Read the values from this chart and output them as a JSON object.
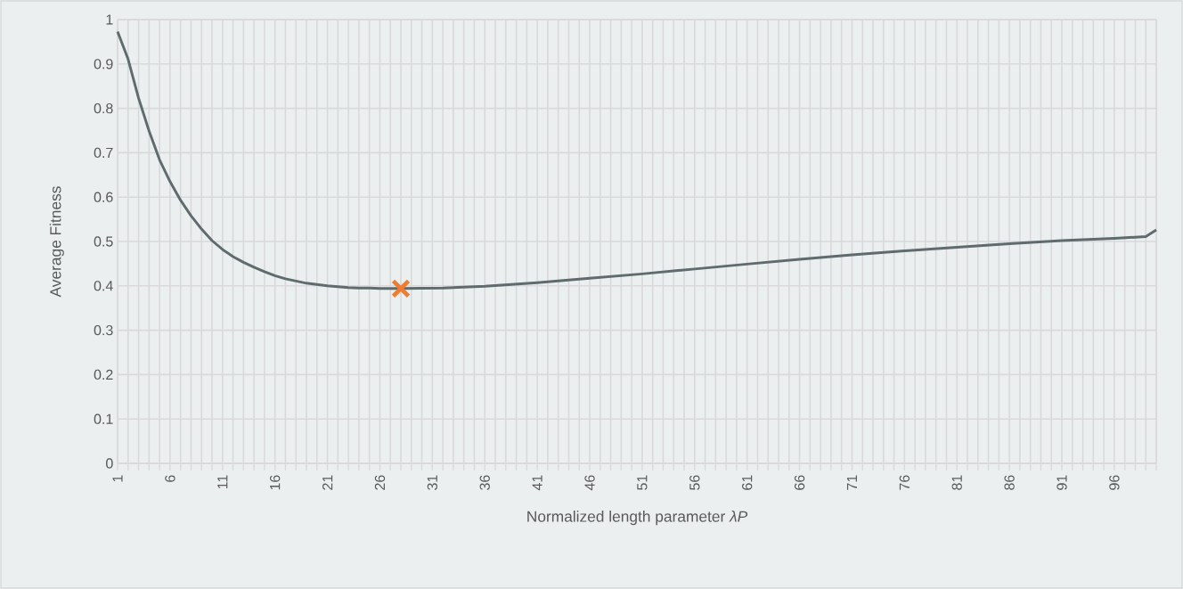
{
  "chart_data": {
    "type": "line",
    "xlabel": "Normalized length parameter *λP*",
    "ylabel": "Average Fitness",
    "xlim": [
      1,
      100
    ],
    "ylim": [
      0,
      1
    ],
    "xticks": [
      {
        "value": 1,
        "label": "1"
      },
      {
        "value": 2,
        "label": null
      },
      {
        "value": 3,
        "label": null
      },
      {
        "value": 4,
        "label": null
      },
      {
        "value": 5,
        "label": null
      },
      {
        "value": 6,
        "label": "6"
      },
      {
        "value": 7,
        "label": null
      },
      {
        "value": 8,
        "label": null
      },
      {
        "value": 9,
        "label": null
      },
      {
        "value": 10,
        "label": null
      },
      {
        "value": 11,
        "label": "11"
      },
      {
        "value": 12,
        "label": null
      },
      {
        "value": 13,
        "label": null
      },
      {
        "value": 14,
        "label": null
      },
      {
        "value": 15,
        "label": null
      },
      {
        "value": 16,
        "label": "16"
      },
      {
        "value": 17,
        "label": null
      },
      {
        "value": 18,
        "label": null
      },
      {
        "value": 19,
        "label": null
      },
      {
        "value": 20,
        "label": null
      },
      {
        "value": 21,
        "label": "21"
      },
      {
        "value": 22,
        "label": null
      },
      {
        "value": 23,
        "label": null
      },
      {
        "value": 24,
        "label": null
      },
      {
        "value": 25,
        "label": null
      },
      {
        "value": 26,
        "label": "26"
      },
      {
        "value": 27,
        "label": null
      },
      {
        "value": 28,
        "label": null
      },
      {
        "value": 29,
        "label": null
      },
      {
        "value": 30,
        "label": null
      },
      {
        "value": 31,
        "label": "31"
      },
      {
        "value": 32,
        "label": null
      },
      {
        "value": 33,
        "label": null
      },
      {
        "value": 34,
        "label": null
      },
      {
        "value": 35,
        "label": null
      },
      {
        "value": 36,
        "label": "36"
      },
      {
        "value": 37,
        "label": null
      },
      {
        "value": 38,
        "label": null
      },
      {
        "value": 39,
        "label": null
      },
      {
        "value": 40,
        "label": null
      },
      {
        "value": 41,
        "label": "41"
      },
      {
        "value": 42,
        "label": null
      },
      {
        "value": 43,
        "label": null
      },
      {
        "value": 44,
        "label": null
      },
      {
        "value": 45,
        "label": null
      },
      {
        "value": 46,
        "label": "46"
      },
      {
        "value": 47,
        "label": null
      },
      {
        "value": 48,
        "label": null
      },
      {
        "value": 49,
        "label": null
      },
      {
        "value": 50,
        "label": null
      },
      {
        "value": 51,
        "label": "51"
      },
      {
        "value": 52,
        "label": null
      },
      {
        "value": 53,
        "label": null
      },
      {
        "value": 54,
        "label": null
      },
      {
        "value": 55,
        "label": null
      },
      {
        "value": 56,
        "label": "56"
      },
      {
        "value": 57,
        "label": null
      },
      {
        "value": 58,
        "label": null
      },
      {
        "value": 59,
        "label": null
      },
      {
        "value": 60,
        "label": null
      },
      {
        "value": 61,
        "label": "61"
      },
      {
        "value": 62,
        "label": null
      },
      {
        "value": 63,
        "label": null
      },
      {
        "value": 64,
        "label": null
      },
      {
        "value": 65,
        "label": null
      },
      {
        "value": 66,
        "label": "66"
      },
      {
        "value": 67,
        "label": null
      },
      {
        "value": 68,
        "label": null
      },
      {
        "value": 69,
        "label": null
      },
      {
        "value": 70,
        "label": null
      },
      {
        "value": 71,
        "label": "71"
      },
      {
        "value": 72,
        "label": null
      },
      {
        "value": 73,
        "label": null
      },
      {
        "value": 74,
        "label": null
      },
      {
        "value": 75,
        "label": null
      },
      {
        "value": 76,
        "label": "76"
      },
      {
        "value": 77,
        "label": null
      },
      {
        "value": 78,
        "label": null
      },
      {
        "value": 79,
        "label": null
      },
      {
        "value": 80,
        "label": null
      },
      {
        "value": 81,
        "label": "81"
      },
      {
        "value": 82,
        "label": null
      },
      {
        "value": 83,
        "label": null
      },
      {
        "value": 84,
        "label": null
      },
      {
        "value": 85,
        "label": null
      },
      {
        "value": 86,
        "label": "86"
      },
      {
        "value": 87,
        "label": null
      },
      {
        "value": 88,
        "label": null
      },
      {
        "value": 89,
        "label": null
      },
      {
        "value": 90,
        "label": null
      },
      {
        "value": 91,
        "label": "91"
      },
      {
        "value": 92,
        "label": null
      },
      {
        "value": 93,
        "label": null
      },
      {
        "value": 94,
        "label": null
      },
      {
        "value": 95,
        "label": null
      },
      {
        "value": 96,
        "label": "96"
      },
      {
        "value": 97,
        "label": null
      },
      {
        "value": 98,
        "label": null
      },
      {
        "value": 99,
        "label": null
      },
      {
        "value": 100,
        "label": null
      }
    ],
    "yticks": [
      0,
      0.1,
      0.2,
      0.3,
      0.4,
      0.5,
      0.6,
      0.7,
      0.8,
      0.9,
      1
    ],
    "grid": true,
    "series": [
      {
        "color": "#5f6b6d",
        "x": [
          1,
          2,
          3,
          4,
          5,
          6,
          7,
          8,
          9,
          10,
          11,
          12,
          13,
          14,
          15,
          16,
          17,
          18,
          19,
          20,
          21,
          22,
          23,
          24,
          25,
          26,
          27,
          28,
          32,
          36,
          41,
          46,
          51,
          56,
          61,
          66,
          71,
          76,
          81,
          86,
          91,
          96,
          99,
          100
        ],
        "values": [
          0.973,
          0.911,
          0.823,
          0.749,
          0.684,
          0.635,
          0.593,
          0.558,
          0.528,
          0.502,
          0.482,
          0.466,
          0.453,
          0.442,
          0.432,
          0.423,
          0.416,
          0.411,
          0.406,
          0.403,
          0.4,
          0.398,
          0.396,
          0.395,
          0.395,
          0.394,
          0.394,
          0.394,
          0.395,
          0.399,
          0.407,
          0.417,
          0.427,
          0.438,
          0.449,
          0.46,
          0.47,
          0.479,
          0.487,
          0.495,
          0.502,
          0.507,
          0.511,
          0.526
        ]
      },
      {
        "type": "scatter",
        "color": "#ed7d31",
        "marker": "cross",
        "x": [
          28
        ],
        "values": [
          0.394
        ]
      }
    ]
  }
}
